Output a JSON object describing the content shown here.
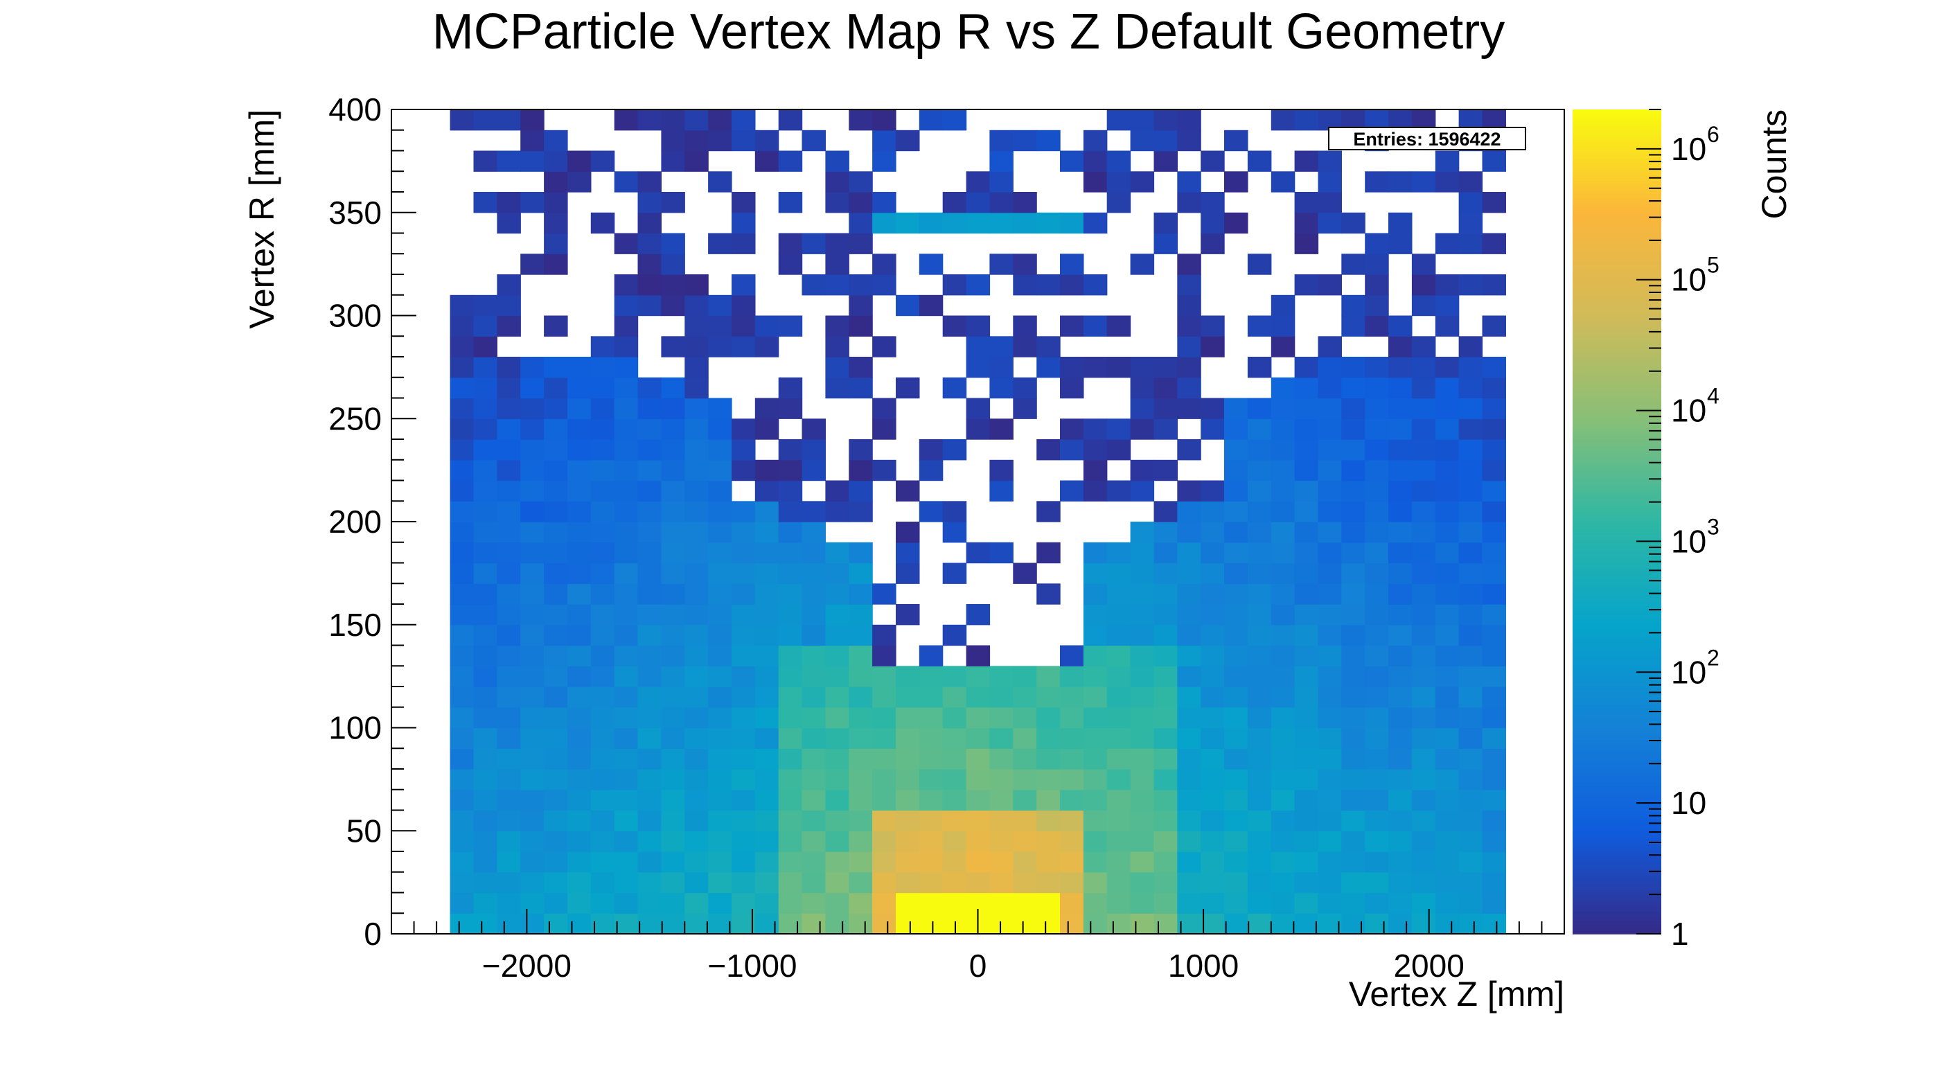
{
  "chart_data": {
    "type": "heatmap",
    "title": "MCParticle Vertex Map R vs Z Default Geometry",
    "xlabel": "Vertex Z [mm]",
    "ylabel": "Vertex R [mm]",
    "zlabel": "Counts",
    "xlim": [
      -2600,
      2600
    ],
    "ylim": [
      0,
      400
    ],
    "zlim": [
      1,
      2000000
    ],
    "zscale": "log",
    "x_ticks": [
      -2000,
      -1000,
      0,
      1000,
      2000
    ],
    "x_tick_labels": [
      "−2000",
      "−1000",
      "0",
      "1000",
      "2000"
    ],
    "y_ticks": [
      0,
      50,
      100,
      150,
      200,
      250,
      300,
      350,
      400
    ],
    "y_tick_labels": [
      "0",
      "50",
      "100",
      "150",
      "200",
      "250",
      "300",
      "350",
      "400"
    ],
    "z_tick_labels": [
      {
        "value": 1,
        "base": "1",
        "exp": ""
      },
      {
        "value": 10,
        "base": "10",
        "exp": ""
      },
      {
        "value": 100,
        "base": "10",
        "exp": "2"
      },
      {
        "value": 1000,
        "base": "10",
        "exp": "3"
      },
      {
        "value": 10000,
        "base": "10",
        "exp": "4"
      },
      {
        "value": 100000,
        "base": "10",
        "exp": "5"
      },
      {
        "value": 1000000,
        "base": "10",
        "exp": "6"
      }
    ],
    "bin_width_z_mm": 104,
    "bin_height_r_mm": 10,
    "grid": false,
    "legend": "none",
    "stats_box": {
      "text": "Entries: 1596422",
      "position": "top-right"
    },
    "palette": [
      "#352a87",
      "#0f5cdd",
      "#1481d6",
      "#06a4ca",
      "#2eb7a4",
      "#87bf77",
      "#d1bb59",
      "#fbb63b",
      "#f9fb0e"
    ]
  }
}
